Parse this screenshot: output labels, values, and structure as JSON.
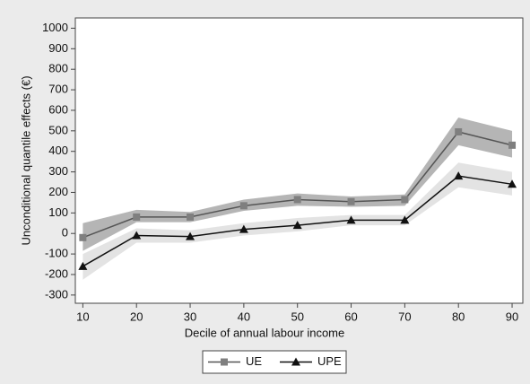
{
  "chart_data": {
    "type": "line",
    "x_label": "Decile of annual labour income",
    "y_label": "Unconditional quantile effects (€)",
    "x": [
      10,
      20,
      30,
      40,
      50,
      60,
      70,
      80,
      90
    ],
    "xlim": [
      8.6,
      92
    ],
    "xticks": [
      10,
      20,
      30,
      40,
      50,
      60,
      70,
      80,
      90
    ],
    "ylim": [
      -340,
      1050
    ],
    "yticks": [
      -300,
      -200,
      -100,
      0,
      100,
      200,
      300,
      400,
      500,
      600,
      700,
      800,
      900,
      1000
    ],
    "grid": false,
    "legend": "bottom",
    "series": [
      {
        "name": "UE",
        "color": "#555555",
        "marker": "square",
        "marker_color": "#7f7f7f",
        "band_color": "#a8a8a8",
        "values": [
          -20,
          80,
          80,
          135,
          165,
          155,
          165,
          495,
          430
        ],
        "lower": [
          -85,
          55,
          55,
          110,
          135,
          130,
          135,
          430,
          370
        ],
        "upper": [
          50,
          115,
          105,
          165,
          195,
          180,
          190,
          565,
          500
        ]
      },
      {
        "name": "UPE",
        "color": "#111111",
        "marker": "triangle",
        "marker_color": "#111111",
        "band_color": "#dcdcdc",
        "values": [
          -160,
          -10,
          -15,
          20,
          40,
          65,
          65,
          280,
          240
        ],
        "lower": [
          -225,
          -45,
          -45,
          -10,
          10,
          40,
          40,
          225,
          185
        ],
        "upper": [
          -100,
          25,
          15,
          50,
          75,
          90,
          90,
          345,
          300
        ]
      }
    ]
  }
}
